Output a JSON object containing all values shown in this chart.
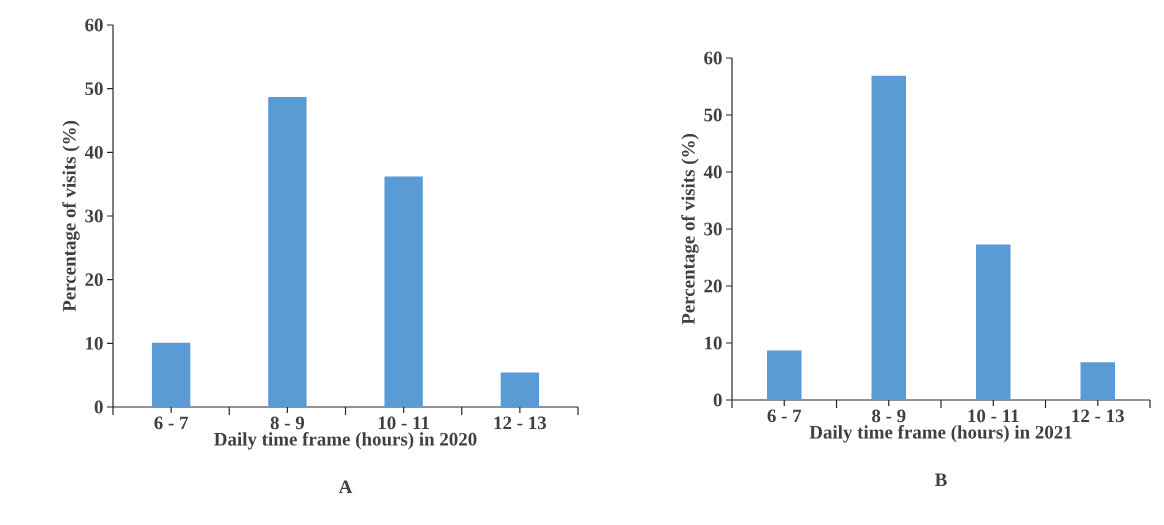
{
  "chart_data": [
    {
      "type": "bar",
      "categories": [
        "6 - 7",
        "8 - 9",
        "10 - 11",
        "12 - 13"
      ],
      "values": [
        10.1,
        48.7,
        36.2,
        5.4
      ],
      "color": "#5b9bd5",
      "xlabel": "Daily time frame (hours) in 2020",
      "ylabel": "Percentage of visits (%)",
      "ylim": [
        0,
        60
      ],
      "yticks": [
        0,
        10,
        20,
        30,
        40,
        50,
        60
      ],
      "annotations": [
        "A"
      ]
    },
    {
      "type": "bar",
      "categories": [
        "6 - 7",
        "8 - 9",
        "10 - 11",
        "12 - 13"
      ],
      "values": [
        8.7,
        56.9,
        27.3,
        6.6
      ],
      "color": "#5b9bd5",
      "xlabel": "Daily time frame (hours) in 2021",
      "ylabel": "Percentage of visits (%)",
      "ylim": [
        0,
        60
      ],
      "yticks": [
        0,
        10,
        20,
        30,
        40,
        50,
        60
      ],
      "annotations": [
        "B"
      ]
    }
  ]
}
